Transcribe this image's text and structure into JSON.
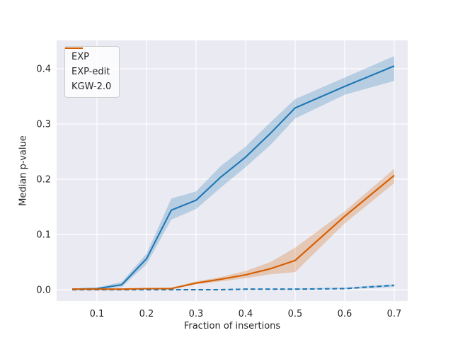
{
  "figure": {
    "background": "#ffffff",
    "plot_background": "#eaeaf2",
    "grid_color": "#ffffff",
    "text_color": "#262626"
  },
  "chart_data": {
    "type": "line",
    "title": "",
    "xlabel": "Fraction of insertions",
    "ylabel": "Median p-value",
    "grid": true,
    "legend_position": "upper left",
    "xlim": [
      0.0186,
      0.7271
    ],
    "ylim": [
      -0.0205,
      0.4513
    ],
    "x_tick_values": [
      0.1,
      0.2,
      0.3,
      0.4,
      0.5,
      0.6,
      0.7
    ],
    "x_tick_labels": [
      "0.1",
      "0.2",
      "0.3",
      "0.4",
      "0.5",
      "0.6",
      "0.7"
    ],
    "y_tick_values": [
      0.0,
      0.1,
      0.2,
      0.3,
      0.4
    ],
    "y_tick_labels": [
      "0.0",
      "0.1",
      "0.2",
      "0.3",
      "0.4"
    ],
    "x": [
      0.05,
      0.1,
      0.15,
      0.2,
      0.25,
      0.3,
      0.35,
      0.4,
      0.45,
      0.5,
      0.6,
      0.7
    ],
    "series": [
      {
        "name": "EXP",
        "color": "#1f77b4",
        "style": "solid",
        "values": [
          0.001,
          0.002,
          0.009,
          0.056,
          0.144,
          0.162,
          0.204,
          0.24,
          0.283,
          0.329,
          0.368,
          0.405
        ],
        "band_low": [
          0.0,
          0.0,
          0.005,
          0.046,
          0.127,
          0.146,
          0.185,
          0.222,
          0.262,
          0.31,
          0.353,
          0.378
        ],
        "band_high": [
          0.002,
          0.004,
          0.014,
          0.065,
          0.165,
          0.178,
          0.224,
          0.259,
          0.303,
          0.345,
          0.384,
          0.423
        ]
      },
      {
        "name": "EXP-edit",
        "color": "#1f77b4",
        "style": "dashed",
        "values": [
          0.0,
          0.0,
          0.0,
          0.0,
          0.0,
          0.0,
          0.0,
          0.001,
          0.001,
          0.001,
          0.002,
          0.008
        ],
        "band_low": [
          0.0,
          0.0,
          0.0,
          0.0,
          0.0,
          0.0,
          0.0,
          0.0,
          0.0,
          0.0,
          0.001,
          0.005
        ],
        "band_high": [
          0.001,
          0.001,
          0.001,
          0.001,
          0.001,
          0.001,
          0.001,
          0.001,
          0.001,
          0.002,
          0.004,
          0.01
        ]
      },
      {
        "name": "KGW-2.0",
        "color": "#d55e00",
        "style": "solid",
        "values": [
          0.001,
          0.001,
          0.001,
          0.002,
          0.002,
          0.012,
          0.019,
          0.027,
          0.038,
          0.053,
          0.133,
          0.207
        ],
        "band_low": [
          0.0,
          0.0,
          0.0,
          0.001,
          0.001,
          0.01,
          0.015,
          0.021,
          0.028,
          0.032,
          0.12,
          0.193
        ],
        "band_high": [
          0.002,
          0.002,
          0.002,
          0.003,
          0.004,
          0.015,
          0.023,
          0.034,
          0.05,
          0.076,
          0.142,
          0.219
        ]
      }
    ]
  }
}
